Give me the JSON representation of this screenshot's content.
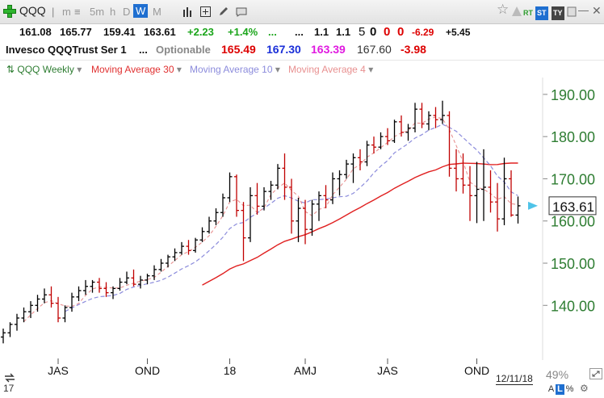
{
  "toolbar": {
    "symbol": "QQQ",
    "timeframes": [
      "m",
      "5m",
      "h",
      "D",
      "W",
      "M"
    ],
    "active_timeframe": "W",
    "right_labels": [
      "RT",
      "ST",
      "TY"
    ]
  },
  "quote": {
    "open": "161.08",
    "high": "165.77",
    "low": "159.41",
    "close": "163.61",
    "change": "+2.23",
    "change_pct": "+1.4%",
    "dots": "...",
    "v1": "1.1",
    "v2": "1.1",
    "v3": "5",
    "v4": "0",
    "v5": "0",
    "v6": "0",
    "v7": "-6.29",
    "v8": "+5.45"
  },
  "info": {
    "name": "Invesco QQQTrust Ser 1",
    "dots": "...",
    "optionable": "Optionable",
    "ma30": "165.49",
    "ma10": "167.30",
    "ma4": "163.39",
    "extra": "167.60",
    "extra_change": "-3.98"
  },
  "legend": {
    "items": [
      {
        "label": "QQQ Weekly",
        "color": "#2e7d32"
      },
      {
        "label": "Moving Average 30",
        "color": "#e03030"
      },
      {
        "label": "Moving Average 10",
        "color": "#8c8cdc"
      },
      {
        "label": "Moving Average 4",
        "color": "#e89090"
      }
    ]
  },
  "footer": {
    "year_short": "17",
    "date": "12/11/18",
    "zoom": "49%",
    "buttons": [
      "A",
      "L",
      "%"
    ]
  },
  "colors": {
    "up": "#000000",
    "down": "#c00000",
    "axis_text": "#2e7d32",
    "price_box": "#4fc3e8"
  },
  "chart_data": {
    "type": "ohlc",
    "interval": "weekly",
    "y_range": [
      128,
      194
    ],
    "y_ticks": [
      140,
      150,
      160,
      170,
      180,
      190
    ],
    "x_ticks": [
      {
        "label": "JAS",
        "index": 8
      },
      {
        "label": "OND",
        "index": 21
      },
      {
        "label": "18",
        "index": 33
      },
      {
        "label": "AMJ",
        "index": 44
      },
      {
        "label": "JAS",
        "index": 56
      },
      {
        "label": "OND",
        "index": 69
      }
    ],
    "year_label": {
      "label": "2018",
      "index": 33
    },
    "last_price": "163.61",
    "bars": [
      [
        132.5,
        134.5,
        131,
        133.5
      ],
      [
        133.5,
        136,
        132.5,
        135.5
      ],
      [
        135.5,
        138,
        134,
        137
      ],
      [
        137,
        139.5,
        136,
        138.5
      ],
      [
        138.5,
        141,
        137,
        140
      ],
      [
        140,
        142.5,
        138.5,
        141.5
      ],
      [
        141.5,
        144,
        140.5,
        142.5
      ],
      [
        142.5,
        144.5,
        139.5,
        140.5
      ],
      [
        140.5,
        142,
        136,
        137
      ],
      [
        137,
        140,
        136,
        139.5
      ],
      [
        139.5,
        143,
        138.5,
        142
      ],
      [
        142,
        144.5,
        141,
        143.5
      ],
      [
        143.5,
        146,
        142.5,
        144.5
      ],
      [
        144.5,
        146,
        143,
        145.5
      ],
      [
        145.5,
        146.5,
        143,
        144
      ],
      [
        144,
        145.5,
        142,
        143
      ],
      [
        143,
        144.5,
        141.5,
        144
      ],
      [
        144,
        146.5,
        143.5,
        145.5
      ],
      [
        145.5,
        148,
        145,
        146.5
      ],
      [
        146.5,
        148.5,
        144.5,
        145
      ],
      [
        145,
        147,
        144,
        146
      ],
      [
        146,
        147.5,
        145,
        147
      ],
      [
        147,
        149.5,
        146,
        148.5
      ],
      [
        148.5,
        151,
        148,
        150
      ],
      [
        150,
        152,
        149,
        151.5
      ],
      [
        151.5,
        153.5,
        150.5,
        152.5
      ],
      [
        152.5,
        155,
        152,
        154
      ],
      [
        154,
        155.5,
        152,
        153
      ],
      [
        153,
        156,
        152.5,
        155.5
      ],
      [
        155.5,
        158.5,
        155,
        157.5
      ],
      [
        157.5,
        161,
        157,
        160
      ],
      [
        160,
        163,
        159,
        162
      ],
      [
        162,
        166.5,
        161,
        165.5
      ],
      [
        165.5,
        171.5,
        164.5,
        170.5
      ],
      [
        170.5,
        171,
        161,
        162.5
      ],
      [
        162.5,
        164.5,
        150.5,
        156
      ],
      [
        156,
        168,
        155,
        166
      ],
      [
        166,
        169,
        161.5,
        163.5
      ],
      [
        163.5,
        168,
        162.5,
        167
      ],
      [
        167,
        169.5,
        165,
        168.5
      ],
      [
        168.5,
        173.5,
        167.5,
        172.5
      ],
      [
        172.5,
        176,
        165,
        168
      ],
      [
        168,
        170,
        157,
        160
      ],
      [
        160,
        165.5,
        155,
        163
      ],
      [
        163,
        165,
        154.5,
        158
      ],
      [
        158,
        165,
        156.5,
        164
      ],
      [
        164,
        167,
        160,
        166
      ],
      [
        166,
        168.5,
        163,
        165
      ],
      [
        165,
        171.5,
        164,
        170
      ],
      [
        170,
        172,
        166,
        171
      ],
      [
        171,
        174.5,
        170,
        173.5
      ],
      [
        173.5,
        176,
        169,
        175
      ],
      [
        175,
        177,
        172,
        174
      ],
      [
        174,
        179,
        173,
        178
      ],
      [
        178,
        180,
        176,
        177.5
      ],
      [
        177.5,
        181,
        177,
        180
      ],
      [
        180,
        182,
        178,
        179
      ],
      [
        179,
        184,
        178.5,
        183.5
      ],
      [
        183.5,
        185,
        180,
        181
      ],
      [
        181,
        183,
        179,
        182
      ],
      [
        182,
        188,
        181,
        186.5
      ],
      [
        186.5,
        188,
        182,
        183
      ],
      [
        183,
        186,
        181.5,
        185
      ],
      [
        185,
        187,
        182,
        184
      ],
      [
        184,
        188.5,
        183,
        185
      ],
      [
        185,
        186,
        170.5,
        172.5
      ],
      [
        172.5,
        177,
        167,
        170
      ],
      [
        170,
        176,
        166.5,
        168.5
      ],
      [
        168.5,
        173,
        160,
        166
      ],
      [
        166,
        174,
        159.5,
        167.5
      ],
      [
        167.5,
        177,
        160,
        168
      ],
      [
        168,
        172,
        162,
        164.5
      ],
      [
        164.5,
        169,
        157.5,
        160.5
      ],
      [
        160.5,
        175,
        159,
        170
      ],
      [
        170,
        172,
        161,
        161.4
      ],
      [
        161.4,
        165.8,
        159.4,
        163.6
      ]
    ],
    "series": [
      {
        "name": "Moving Average 30",
        "period": 30,
        "style": "solid"
      },
      {
        "name": "Moving Average 10",
        "period": 10,
        "style": "dashed"
      },
      {
        "name": "Moving Average 4",
        "period": 4,
        "style": "dashed"
      }
    ]
  }
}
